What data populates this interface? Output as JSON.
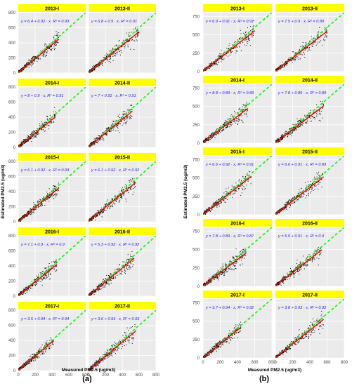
{
  "colors": {
    "strip": "#ffff00",
    "panel_bg": "#ebebeb",
    "grid": "#ffffff",
    "points": "#000000",
    "fit_line": "#ff0000",
    "one_to_one": "#00ff00",
    "equation_text": "#1a1aff"
  },
  "figure": {
    "panel_a_label": "(a)",
    "panel_b_label": "(b)"
  },
  "chart_data": [
    {
      "type": "scatter",
      "title": "",
      "ylabel": "Estimated PM2.5 (ug/m3)",
      "xlabel": "Measured PM2.5 (ug/m3)",
      "xlim": [
        0,
        800
      ],
      "ylim": [
        0,
        800
      ],
      "x_ticks": [
        "0",
        "200",
        "400",
        "600",
        "800"
      ],
      "y_ticks": [
        "0",
        "200",
        "400",
        "600",
        "800"
      ],
      "grid": true,
      "reference_line": "1:1 dashed",
      "panels": [
        {
          "label": "2013-I",
          "equation": "y = 6.4 + 0.92 · x,  R² = 0.93",
          "intercept": 6.4,
          "slope": 0.92,
          "r2": 0.93,
          "xmax": 480
        },
        {
          "label": "2013-II",
          "equation": "y = 6.8 + 0.9 · x,  R² = 0.91",
          "intercept": 6.8,
          "slope": 0.9,
          "r2": 0.91,
          "xmax": 600
        },
        {
          "label": "2014-I",
          "equation": "y = 8 + 0.9 · x,  R² = 0.91",
          "intercept": 8,
          "slope": 0.9,
          "r2": 0.91,
          "xmax": 440
        },
        {
          "label": "2014-II",
          "equation": "y = 7 + 0.91 · x,  R² = 0.91",
          "intercept": 7,
          "slope": 0.91,
          "r2": 0.91,
          "xmax": 520
        },
        {
          "label": "2015-I",
          "equation": "y = 6.1 + 0.92 · x,  R² = 0.93",
          "intercept": 6.1,
          "slope": 0.92,
          "r2": 0.93,
          "xmax": 480
        },
        {
          "label": "2015-II",
          "equation": "y = 6.1 + 0.92 · x,  R² = 0.92",
          "intercept": 6.1,
          "slope": 0.92,
          "r2": 0.92,
          "xmax": 560
        },
        {
          "label": "2016-I",
          "equation": "y = 7.1 + 0.9 · x,  R² = 0.9",
          "intercept": 7.1,
          "slope": 0.9,
          "r2": 0.9,
          "xmax": 460
        },
        {
          "label": "2016-II",
          "equation": "y = 5.3 + 0.92 · x,  R² = 0.92",
          "intercept": 5.3,
          "slope": 0.92,
          "r2": 0.92,
          "xmax": 540
        },
        {
          "label": "2017-I",
          "equation": "y = 3.5 + 0.94 · x,  R² = 0.94",
          "intercept": 3.5,
          "slope": 0.94,
          "r2": 0.94,
          "xmax": 420
        },
        {
          "label": "2017-II",
          "equation": "y = 3.6 + 0.93 · x,  R² = 0.93",
          "intercept": 3.6,
          "slope": 0.93,
          "r2": 0.93,
          "xmax": 560
        }
      ]
    },
    {
      "type": "scatter",
      "title": "",
      "ylabel": "Estimated PM2.5 (ug/m3)",
      "xlabel": "Measured PM2.5 (ug/m3)",
      "xlim": [
        0,
        800
      ],
      "ylim": [
        0,
        800
      ],
      "x_ticks": [
        "0",
        "200",
        "400",
        "600",
        "800"
      ],
      "y_ticks": [
        "0",
        "250",
        "500",
        "750"
      ],
      "grid": true,
      "reference_line": "1:1 dashed",
      "panels": [
        {
          "label": "2013-I",
          "equation": "y = 6.9 + 0.91 · x,  R² = 0.91",
          "intercept": 6.9,
          "slope": 0.91,
          "r2": 0.91,
          "xmax": 600
        },
        {
          "label": "2013-II",
          "equation": "y = 7.5 + 0.9 · x,  R² = 0.89",
          "intercept": 7.5,
          "slope": 0.9,
          "r2": 0.89,
          "xmax": 600
        },
        {
          "label": "2014-I",
          "equation": "y = 8.8 + 0.89 · x,  R² = 0.89",
          "intercept": 8.8,
          "slope": 0.89,
          "r2": 0.89,
          "xmax": 520
        },
        {
          "label": "2014-II",
          "equation": "y = 7.8 + 0.89 · x,  R² = 0.89",
          "intercept": 7.8,
          "slope": 0.89,
          "r2": 0.89,
          "xmax": 560
        },
        {
          "label": "2015-I",
          "equation": "y = 6.6 + 0.92 · x,  R² = 0.91",
          "intercept": 6.6,
          "slope": 0.92,
          "r2": 0.91,
          "xmax": 560
        },
        {
          "label": "2015-II",
          "equation": "y = 6.6 + 0.91 · x,  R² = 0.89",
          "intercept": 6.6,
          "slope": 0.91,
          "r2": 0.89,
          "xmax": 560
        },
        {
          "label": "2016-I",
          "equation": "y = 7.8 + 0.89 · x,  R² = 0.87",
          "intercept": 7.8,
          "slope": 0.89,
          "r2": 0.87,
          "xmax": 500
        },
        {
          "label": "2016-II",
          "equation": "y = 5.9 + 0.91 · x,  R² = 0.9",
          "intercept": 5.9,
          "slope": 0.91,
          "r2": 0.9,
          "xmax": 540
        },
        {
          "label": "2017-I",
          "equation": "y = 3.7 + 0.94 · x,  R² = 0.92",
          "intercept": 3.7,
          "slope": 0.94,
          "r2": 0.92,
          "xmax": 440
        },
        {
          "label": "2017-II",
          "equation": "y = 3.8 + 0.93 · x,  R² = 0.92",
          "intercept": 3.8,
          "slope": 0.93,
          "r2": 0.92,
          "xmax": 560
        }
      ]
    }
  ]
}
